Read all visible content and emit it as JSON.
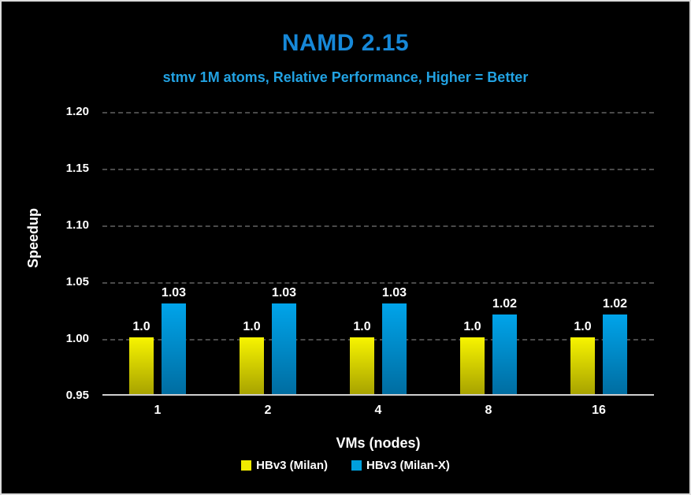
{
  "chart_data": {
    "type": "bar",
    "title": "NAMD 2.15",
    "subtitle": "stmv 1M atoms, Relative Performance, Higher = Better",
    "xlabel": "VMs (nodes)",
    "ylabel": "Speedup",
    "categories": [
      "1",
      "2",
      "4",
      "8",
      "16"
    ],
    "series": [
      {
        "name": "HBv3 (Milan)",
        "values": [
          1.0,
          1.0,
          1.0,
          1.0,
          1.0
        ],
        "labels": [
          "1.0",
          "1.0",
          "1.0",
          "1.0",
          "1.0"
        ],
        "color_top": "#f7f400",
        "color_bottom": "#a8a300",
        "legend_color": "#f0ea00"
      },
      {
        "name": "HBv3 (Milan-X)",
        "values": [
          1.03,
          1.03,
          1.03,
          1.02,
          1.02
        ],
        "labels": [
          "1.03",
          "1.03",
          "1.03",
          "1.02",
          "1.02"
        ],
        "color_top": "#00a4ea",
        "color_bottom": "#006da1",
        "legend_color": "#00a0dd"
      }
    ],
    "ylim": [
      0.95,
      1.2
    ],
    "yticks": [
      0.95,
      1.0,
      1.05,
      1.1,
      1.15,
      1.2
    ],
    "ytick_labels": [
      "0.95",
      "1.00",
      "1.05",
      "1.10",
      "1.15",
      "1.20"
    ],
    "grid": "horizontal-dashed",
    "legend_position": "bottom",
    "colors": {
      "background": "#000000",
      "title": "#1688d8",
      "subtitle": "#22a2e2",
      "axis_text": "#ffffff",
      "gridline": "#4a4a4a",
      "baseline": "#cfcfcf"
    }
  }
}
